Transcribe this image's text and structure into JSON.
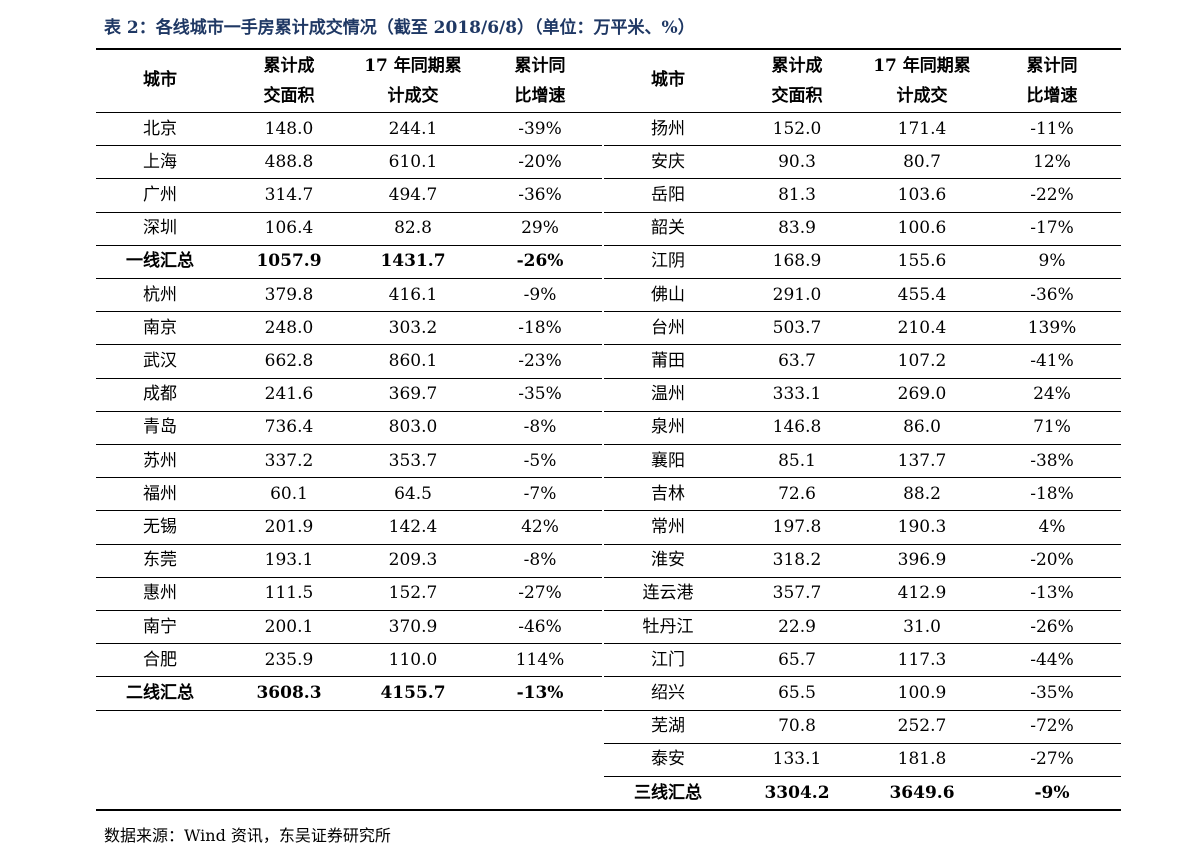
{
  "title": "表 2：各线城市一手房累计成交情况（截至 2018/6/8）（单位：万平米、%）",
  "header": [
    [
      "城市"
    ],
    [
      "累计成",
      "交面积"
    ],
    [
      "17 年同期累",
      "计成交"
    ],
    [
      "累计同",
      "比增速"
    ]
  ],
  "tables": [
    {
      "rows": [
        [
          "北京",
          "148.0",
          "244.1",
          "-39%"
        ],
        [
          "上海",
          "488.8",
          "610.1",
          "-20%"
        ],
        [
          "广州",
          "314.7",
          "494.7",
          "-36%"
        ],
        [
          "深圳",
          "106.4",
          "82.8",
          "29%"
        ],
        [
          "一线汇总",
          "1057.9",
          "1431.7",
          "-26%"
        ],
        [
          "杭州",
          "379.8",
          "416.1",
          "-9%"
        ],
        [
          "南京",
          "248.0",
          "303.2",
          "-18%"
        ],
        [
          "武汉",
          "662.8",
          "860.1",
          "-23%"
        ],
        [
          "成都",
          "241.6",
          "369.7",
          "-35%"
        ],
        [
          "青岛",
          "736.4",
          "803.0",
          "-8%"
        ],
        [
          "苏州",
          "337.2",
          "353.7",
          "-5%"
        ],
        [
          "福州",
          "60.1",
          "64.5",
          "-7%"
        ],
        [
          "无锡",
          "201.9",
          "142.4",
          "42%"
        ],
        [
          "东莞",
          "193.1",
          "209.3",
          "-8%"
        ],
        [
          "惠州",
          "111.5",
          "152.7",
          "-27%"
        ],
        [
          "南宁",
          "200.1",
          "370.9",
          "-46%"
        ],
        [
          "合肥",
          "235.9",
          "110.0",
          "114%"
        ],
        [
          "二线汇总",
          "3608.3",
          "4155.7",
          "-13%"
        ]
      ],
      "bold_rows": [
        4,
        17
      ]
    },
    {
      "rows": [
        [
          "扬州",
          "152.0",
          "171.4",
          "-11%"
        ],
        [
          "安庆",
          "90.3",
          "80.7",
          "12%"
        ],
        [
          "岳阳",
          "81.3",
          "103.6",
          "-22%"
        ],
        [
          "韶关",
          "83.9",
          "100.6",
          "-17%"
        ],
        [
          "江阴",
          "168.9",
          "155.6",
          "9%"
        ],
        [
          "佛山",
          "291.0",
          "455.4",
          "-36%"
        ],
        [
          "台州",
          "503.7",
          "210.4",
          "139%"
        ],
        [
          "莆田",
          "63.7",
          "107.2",
          "-41%"
        ],
        [
          "温州",
          "333.1",
          "269.0",
          "24%"
        ],
        [
          "泉州",
          "146.8",
          "86.0",
          "71%"
        ],
        [
          "襄阳",
          "85.1",
          "137.7",
          "-38%"
        ],
        [
          "吉林",
          "72.6",
          "88.2",
          "-18%"
        ],
        [
          "常州",
          "197.8",
          "190.3",
          "4%"
        ],
        [
          "淮安",
          "318.2",
          "396.9",
          "-20%"
        ],
        [
          "连云港",
          "357.7",
          "412.9",
          "-13%"
        ],
        [
          "牡丹江",
          "22.9",
          "31.0",
          "-26%"
        ],
        [
          "江门",
          "65.7",
          "117.3",
          "-44%"
        ],
        [
          "绍兴",
          "65.5",
          "100.9",
          "-35%"
        ],
        [
          "芜湖",
          "70.8",
          "252.7",
          "-72%"
        ],
        [
          "泰安",
          "133.1",
          "181.8",
          "-27%"
        ],
        [
          "三线汇总",
          "3304.2",
          "3649.6",
          "-9%"
        ]
      ],
      "bold_rows": [
        20
      ]
    }
  ],
  "source": "数据来源：Wind 资讯，东吴证券研究所"
}
